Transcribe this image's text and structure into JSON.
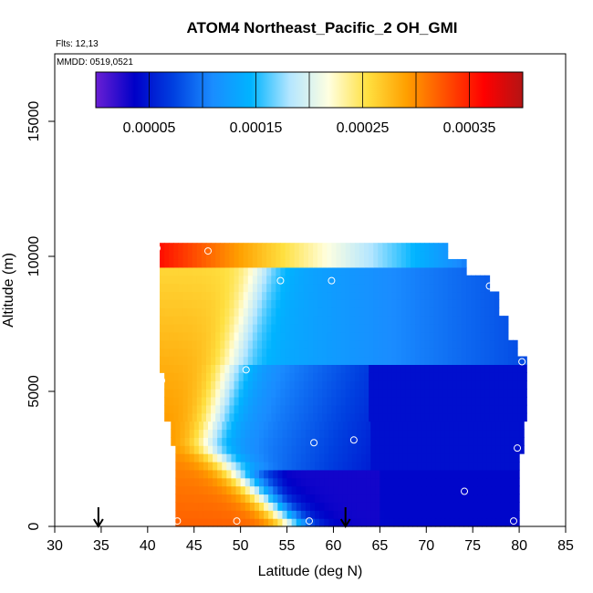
{
  "chart_data": {
    "type": "heatmap",
    "title": "ATOM4 Northeast_Pacific_2 OH_GMI",
    "annotations": [
      "Flts: 12,13",
      "MMDD: 0519,0521"
    ],
    "xlabel": "Latitude (deg N)",
    "ylabel": "Altitude (m)",
    "xlim": [
      30,
      85
    ],
    "ylim": [
      0,
      17500
    ],
    "x_ticks": [
      30,
      35,
      40,
      45,
      50,
      55,
      60,
      65,
      70,
      75,
      80,
      85
    ],
    "y_ticks": [
      0,
      5000,
      10000,
      15000
    ],
    "grid": false,
    "colorbar": {
      "placement": "top",
      "range": [
        0.0,
        0.0004
      ],
      "tick_values": [
        5e-05,
        0.00015,
        0.00025,
        0.00035
      ],
      "tick_labels": [
        "0.00005",
        "0.00015",
        "0.00025",
        "0.00035"
      ],
      "colors": [
        "#6a1fd4",
        "#0000c8",
        "#0040e0",
        "#1a8cff",
        "#00b4ff",
        "#b4e6ff",
        "#ffffe0",
        "#ffe040",
        "#ffa000",
        "#ff5000",
        "#ff0000",
        "#b41414"
      ]
    },
    "arrows_latitude": [
      34.7,
      61.3
    ],
    "sample_points": [
      {
        "lat": 41.0,
        "alt": 10300,
        "value": 0.00035
      },
      {
        "lat": 46.5,
        "alt": 10200,
        "value": 0.00034
      },
      {
        "lat": 54.3,
        "alt": 9100,
        "value": 0.00016
      },
      {
        "lat": 59.8,
        "alt": 9100,
        "value": 0.00015
      },
      {
        "lat": 76.8,
        "alt": 8900,
        "value": 0.00017
      },
      {
        "lat": 41.5,
        "alt": 5400,
        "value": 0.00029
      },
      {
        "lat": 50.6,
        "alt": 5800,
        "value": 0.00013
      },
      {
        "lat": 80.3,
        "alt": 6100,
        "value": 6e-05
      },
      {
        "lat": 57.9,
        "alt": 3100,
        "value": 6e-05
      },
      {
        "lat": 62.2,
        "alt": 3200,
        "value": 5e-05
      },
      {
        "lat": 79.8,
        "alt": 2900,
        "value": 4e-05
      },
      {
        "lat": 74.1,
        "alt": 1300,
        "value": 4e-05
      },
      {
        "lat": 43.2,
        "alt": 200,
        "value": 0.00015
      },
      {
        "lat": 49.6,
        "alt": 200,
        "value": 6e-05
      },
      {
        "lat": 57.4,
        "alt": 200,
        "value": 2e-05
      },
      {
        "lat": 79.4,
        "alt": 200,
        "value": 3e-05
      }
    ]
  }
}
